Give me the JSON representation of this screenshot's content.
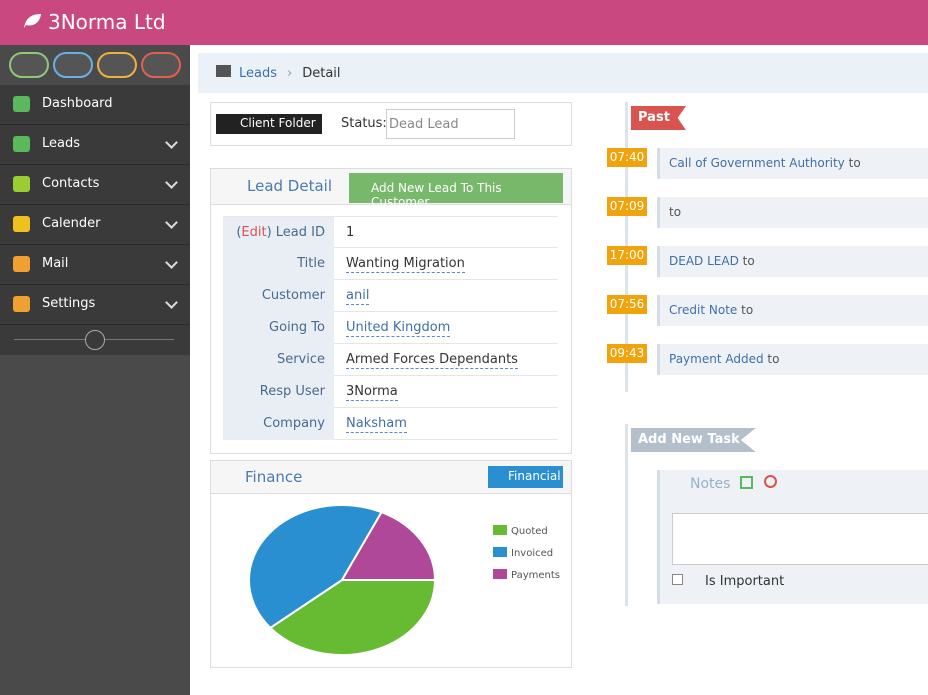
{
  "header": {
    "brand": "3Norma Ltd"
  },
  "sidebar": {
    "menu": [
      "Dashboard",
      "Leads",
      "Contacts",
      "Calender",
      "Mail",
      "Settings"
    ]
  },
  "breadcrumb": [
    "Leads",
    "Detail"
  ],
  "client_folder": {
    "button": "Client Folder",
    "status_label": "Status:",
    "status_value": "Dead Lead"
  },
  "lead_detail": {
    "title": "Lead Detail",
    "button": "Add New Lead To This Customer",
    "edit_open": "(",
    "edit": "Edit",
    "rows": [
      [
        ") Lead ID",
        "1"
      ],
      [
        "Title",
        "Wanting Migration"
      ],
      [
        "Customer",
        "anil"
      ],
      [
        "Going To",
        "United Kingdom"
      ],
      [
        "Service",
        "Armed Forces Dependants"
      ],
      [
        "Resp User",
        "3Norma"
      ],
      [
        "Company",
        "Naksham"
      ]
    ]
  },
  "finance": {
    "title": "Finance",
    "button": "Financial",
    "chart_data": {
      "type": "pie",
      "series": [
        {
          "name": "Quoted",
          "color": "#66bb33",
          "values": [
            39
          ]
        },
        {
          "name": "Invoiced",
          "color": "#2a8fd0",
          "values": [
            43
          ]
        },
        {
          "name": "Payments",
          "color": "#b0489a",
          "values": [
            18
          ]
        }
      ]
    }
  },
  "timeline": {
    "label": "Past",
    "events": [
      {
        "time": "07:40",
        "text": "Call of Government Authority",
        "suffix": "to"
      },
      {
        "time": "07:09",
        "text": "",
        "suffix": "to"
      },
      {
        "time": "17:00",
        "text": "DEAD LEAD",
        "suffix": "to"
      },
      {
        "time": "07:56",
        "text": "Credit Note",
        "suffix": "to"
      },
      {
        "time": "09:43",
        "text": "Payment Added",
        "suffix": "to"
      }
    ]
  },
  "add_task": {
    "label": "Add New Task",
    "notes": "Notes",
    "important": "Is Important"
  }
}
